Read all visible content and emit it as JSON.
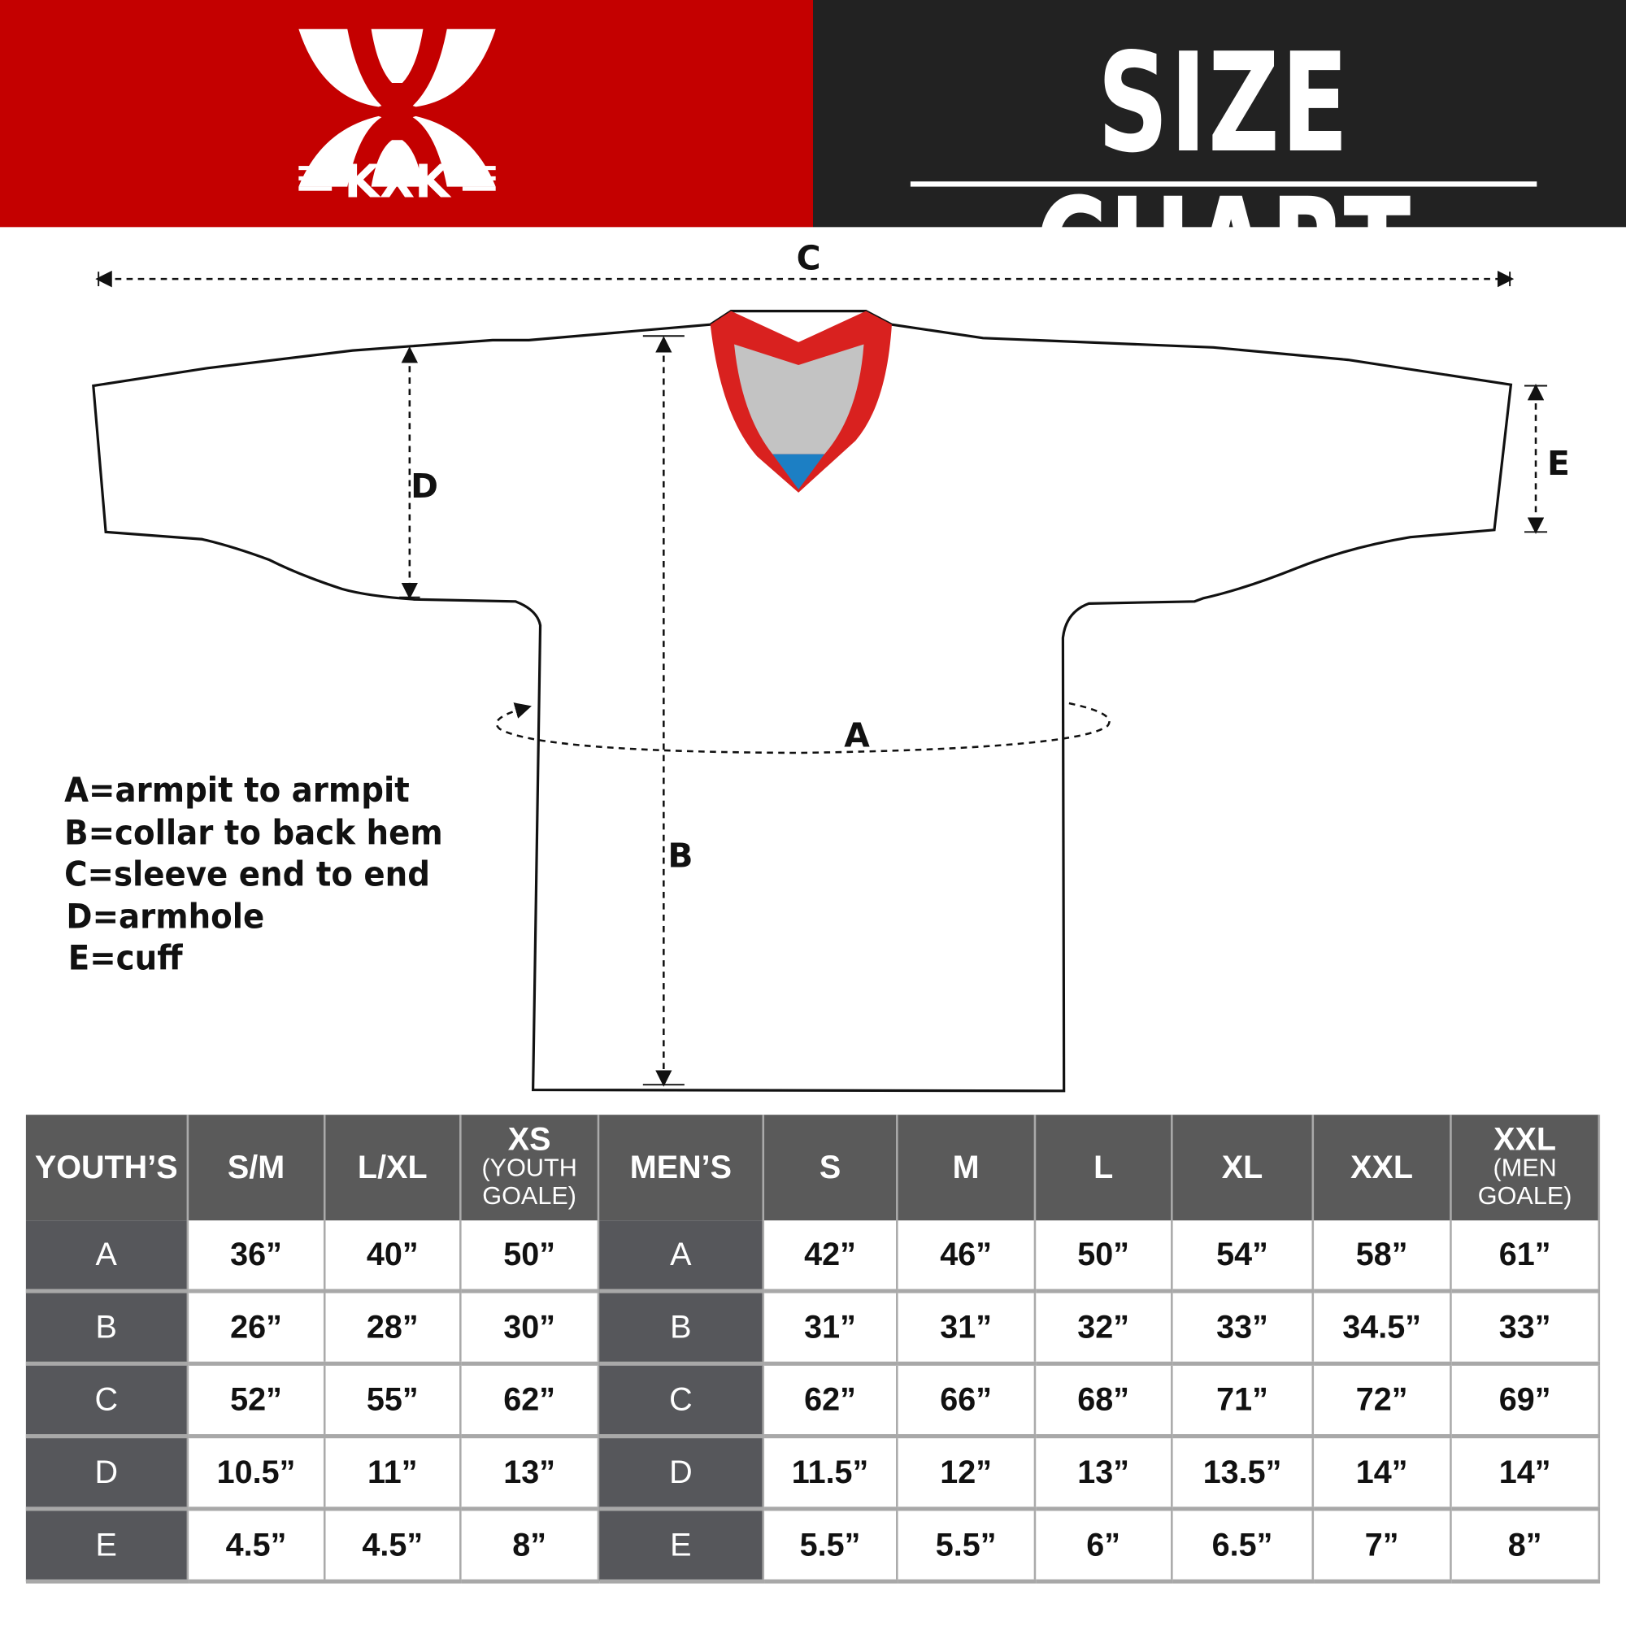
{
  "header": {
    "brand": "KXK",
    "title": "SIZE CHART",
    "colors": {
      "brand_red": "#c40000",
      "dark": "#222222",
      "table_header": "#5a5a5a"
    }
  },
  "diagram": {
    "labels": {
      "a": "A",
      "b": "B",
      "c": "C",
      "d": "D",
      "e": "E"
    },
    "legend": [
      "A=armpit to armpit",
      "B=collar to back hem",
      "C=sleeve end to end",
      "D=armhole",
      "E=cuff"
    ]
  },
  "table": {
    "youth": {
      "heading": "YOUTH’S",
      "sizes": [
        {
          "main": "S/M",
          "sub": ""
        },
        {
          "main": "L/XL",
          "sub": ""
        },
        {
          "main": "XS",
          "sub": "(YOUTH GOALE)"
        }
      ]
    },
    "men": {
      "heading": "MEN’S",
      "sizes": [
        {
          "main": "S",
          "sub": ""
        },
        {
          "main": "M",
          "sub": ""
        },
        {
          "main": "L",
          "sub": ""
        },
        {
          "main": "XL",
          "sub": ""
        },
        {
          "main": "XXL",
          "sub": ""
        },
        {
          "main": "XXL",
          "sub": "(MEN GOALE)"
        }
      ]
    },
    "rows": [
      {
        "label": "A",
        "youth": [
          "36”",
          "40”",
          "50”"
        ],
        "men": [
          "42”",
          "46”",
          "50”",
          "54”",
          "58”",
          "61”"
        ]
      },
      {
        "label": "B",
        "youth": [
          "26”",
          "28”",
          "30”"
        ],
        "men": [
          "31”",
          "31”",
          "32”",
          "33”",
          "34.5”",
          "33”"
        ]
      },
      {
        "label": "C",
        "youth": [
          "52”",
          "55”",
          "62”"
        ],
        "men": [
          "62”",
          "66”",
          "68”",
          "71”",
          "72”",
          "69”"
        ]
      },
      {
        "label": "D",
        "youth": [
          "10.5”",
          "11”",
          "13”"
        ],
        "men": [
          "11.5”",
          "12”",
          "13”",
          "13.5”",
          "14”",
          "14”"
        ]
      },
      {
        "label": "E",
        "youth": [
          "4.5”",
          "4.5”",
          "8”"
        ],
        "men": [
          "5.5”",
          "5.5”",
          "6”",
          "6.5”",
          "7”",
          "8”"
        ]
      }
    ]
  }
}
